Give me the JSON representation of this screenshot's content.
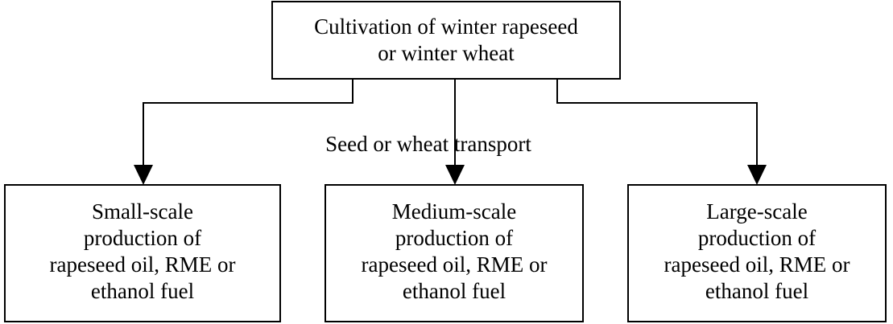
{
  "nodes": [
    {
      "label": [
        "Cultivation of winter rapeseed",
        "or winter wheat"
      ]
    },
    {
      "label": [
        "Small-scale",
        "production of",
        "rapeseed oil, RME or",
        "ethanol fuel"
      ]
    },
    {
      "label": [
        "Medium-scale",
        "production of",
        "rapeseed oil, RME or",
        "ethanol fuel"
      ]
    },
    {
      "label": [
        "Large-scale",
        "production of",
        "rapeseed oil, RME or",
        "ethanol fuel"
      ]
    }
  ],
  "edge_label": "Seed or wheat transport"
}
